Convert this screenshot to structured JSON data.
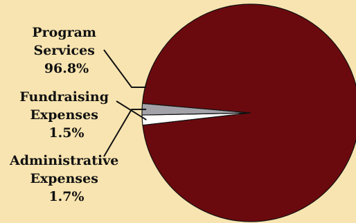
{
  "chart_data": {
    "type": "pie",
    "title": "",
    "slices": [
      {
        "label_lines": [
          "Program",
          "Services"
        ],
        "value_label": "96.8%",
        "value": 96.8,
        "color": "#6b0a0e"
      },
      {
        "label_lines": [
          "Fundraising",
          "Expenses"
        ],
        "value_label": "1.5%",
        "value": 1.5,
        "color": "#ffffff"
      },
      {
        "label_lines": [
          "Administrative",
          "Expenses"
        ],
        "value_label": "1.7%",
        "value": 1.7,
        "color": "#a2a2a8"
      }
    ],
    "legend": "none"
  },
  "colors": {
    "background": "#f8e4b0",
    "outline": "#111111"
  }
}
